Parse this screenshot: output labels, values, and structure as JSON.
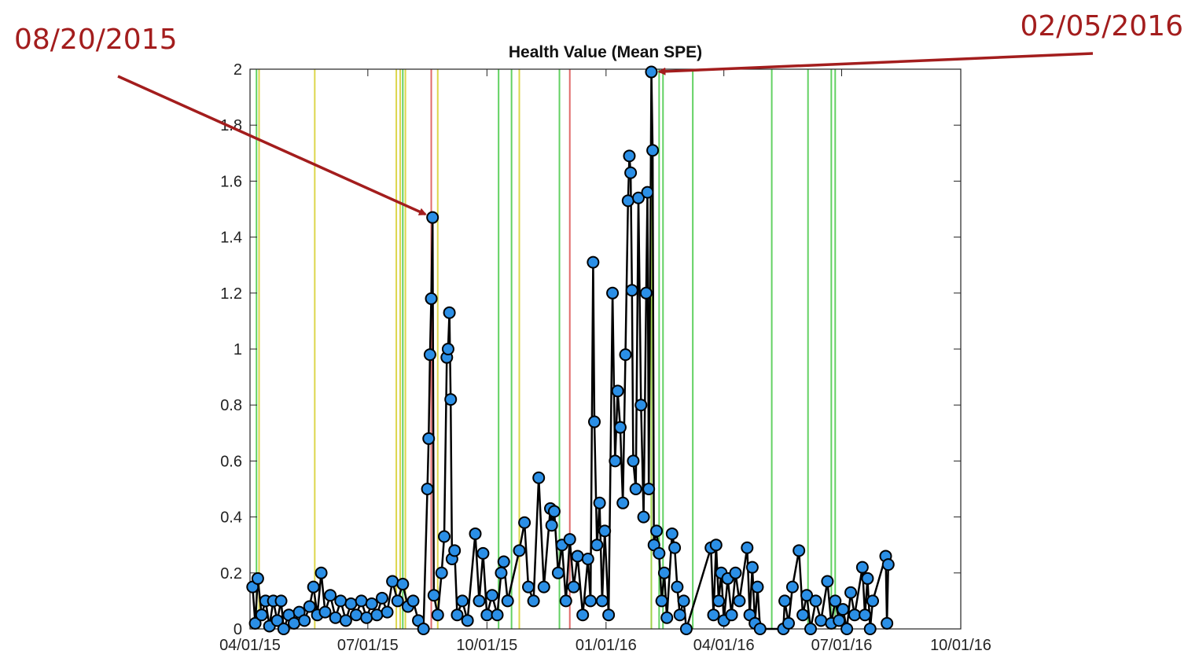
{
  "chart_data": {
    "type": "line",
    "title": "Health Value (Mean SPE)",
    "xlim": [
      "2015-04-01",
      "2016-10-01"
    ],
    "xticks": [
      {
        "value": "2015-04-01",
        "label": "04/01/15"
      },
      {
        "value": "2015-07-01",
        "label": "07/01/15"
      },
      {
        "value": "2015-10-01",
        "label": "10/01/15"
      },
      {
        "value": "2016-01-01",
        "label": "01/01/16"
      },
      {
        "value": "2016-04-01",
        "label": "04/01/16"
      },
      {
        "value": "2016-07-01",
        "label": "07/01/16"
      },
      {
        "value": "2016-10-01",
        "label": "10/01/16"
      }
    ],
    "ylim": [
      0,
      2
    ],
    "yticks": [
      0,
      0.2,
      0.4,
      0.6,
      0.8,
      1,
      1.2,
      1.4,
      1.6,
      1.8,
      2
    ],
    "grid": false,
    "line_color": "#000000",
    "marker_color": "#2b8fe6",
    "x": [
      "2015-04-03",
      "2015-04-05",
      "2015-04-07",
      "2015-04-10",
      "2015-04-13",
      "2015-04-16",
      "2015-04-19",
      "2015-04-22",
      "2015-04-25",
      "2015-04-27",
      "2015-05-01",
      "2015-05-05",
      "2015-05-09",
      "2015-05-13",
      "2015-05-17",
      "2015-05-20",
      "2015-05-23",
      "2015-05-26",
      "2015-05-29",
      "2015-06-02",
      "2015-06-06",
      "2015-06-10",
      "2015-06-14",
      "2015-06-18",
      "2015-06-22",
      "2015-06-26",
      "2015-06-30",
      "2015-07-04",
      "2015-07-08",
      "2015-07-12",
      "2015-07-16",
      "2015-07-20",
      "2015-07-24",
      "2015-07-28",
      "2015-08-01",
      "2015-08-05",
      "2015-08-09",
      "2015-08-13",
      "2015-08-16",
      "2015-08-17",
      "2015-08-18",
      "2015-08-19",
      "2015-08-20",
      "2015-08-21",
      "2015-08-24",
      "2015-08-27",
      "2015-08-29",
      "2015-08-31",
      "2015-09-01",
      "2015-09-02",
      "2015-09-03",
      "2015-09-04",
      "2015-09-06",
      "2015-09-08",
      "2015-09-12",
      "2015-09-16",
      "2015-09-22",
      "2015-09-25",
      "2015-09-28",
      "2015-10-01",
      "2015-10-05",
      "2015-10-09",
      "2015-10-12",
      "2015-10-14",
      "2015-10-17",
      "2015-10-26",
      "2015-10-30",
      "2015-11-02",
      "2015-11-06",
      "2015-11-10",
      "2015-11-14",
      "2015-11-19",
      "2015-11-20",
      "2015-11-22",
      "2015-11-25",
      "2015-11-28",
      "2015-12-01",
      "2015-12-04",
      "2015-12-07",
      "2015-12-10",
      "2015-12-14",
      "2015-12-18",
      "2015-12-20",
      "2015-12-22",
      "2015-12-23",
      "2015-12-25",
      "2015-12-27",
      "2015-12-29",
      "2015-12-31",
      "2016-01-03",
      "2016-01-06",
      "2016-01-08",
      "2016-01-10",
      "2016-01-12",
      "2016-01-14",
      "2016-01-16",
      "2016-01-18",
      "2016-01-19",
      "2016-01-20",
      "2016-01-21",
      "2016-01-22",
      "2016-01-24",
      "2016-01-26",
      "2016-01-28",
      "2016-01-30",
      "2016-02-01",
      "2016-02-02",
      "2016-02-03",
      "2016-02-05",
      "2016-02-06",
      "2016-02-07",
      "2016-02-09",
      "2016-02-11",
      "2016-02-13",
      "2016-02-15",
      "2016-02-17",
      "2016-02-21",
      "2016-02-23",
      "2016-02-25",
      "2016-02-27",
      "2016-03-01",
      "2016-03-03",
      "2016-03-22",
      "2016-03-24",
      "2016-03-26",
      "2016-03-28",
      "2016-03-30",
      "2016-04-01",
      "2016-04-04",
      "2016-04-07",
      "2016-04-10",
      "2016-04-13",
      "2016-04-19",
      "2016-04-21",
      "2016-04-23",
      "2016-04-25",
      "2016-04-27",
      "2016-04-29",
      "2016-05-17",
      "2016-05-18",
      "2016-05-21",
      "2016-05-24",
      "2016-05-29",
      "2016-06-01",
      "2016-06-04",
      "2016-06-07",
      "2016-06-11",
      "2016-06-15",
      "2016-06-20",
      "2016-06-23",
      "2016-06-26",
      "2016-06-29",
      "2016-07-02",
      "2016-07-05",
      "2016-07-08",
      "2016-07-11",
      "2016-07-17",
      "2016-07-19",
      "2016-07-21",
      "2016-07-23",
      "2016-07-25",
      "2016-08-04",
      "2016-08-05",
      "2016-08-06"
    ],
    "series": [
      {
        "name": "Mean SPE",
        "values": [
          0.15,
          0.02,
          0.18,
          0.05,
          0.1,
          0.01,
          0.1,
          0.03,
          0.1,
          0.0,
          0.05,
          0.02,
          0.06,
          0.03,
          0.08,
          0.15,
          0.05,
          0.2,
          0.06,
          0.12,
          0.04,
          0.1,
          0.03,
          0.09,
          0.05,
          0.1,
          0.04,
          0.09,
          0.05,
          0.11,
          0.06,
          0.17,
          0.1,
          0.16,
          0.08,
          0.1,
          0.03,
          0.0,
          0.5,
          0.68,
          0.98,
          1.18,
          1.47,
          0.12,
          0.05,
          0.2,
          0.33,
          0.97,
          1.0,
          1.13,
          0.82,
          0.25,
          0.28,
          0.05,
          0.1,
          0.03,
          0.34,
          0.1,
          0.27,
          0.05,
          0.12,
          0.05,
          0.2,
          0.24,
          0.1,
          0.28,
          0.38,
          0.15,
          0.1,
          0.54,
          0.15,
          0.43,
          0.37,
          0.42,
          0.2,
          0.3,
          0.1,
          0.32,
          0.15,
          0.26,
          0.05,
          0.25,
          0.1,
          1.31,
          0.74,
          0.3,
          0.45,
          0.1,
          0.35,
          0.05,
          1.2,
          0.6,
          0.85,
          0.72,
          0.45,
          0.98,
          1.53,
          1.69,
          1.63,
          1.21,
          0.6,
          0.5,
          1.54,
          0.8,
          0.4,
          1.2,
          1.56,
          0.5,
          1.99,
          1.71,
          0.3,
          0.35,
          0.27,
          0.1,
          0.2,
          0.04,
          0.34,
          0.29,
          0.15,
          0.05,
          0.1,
          0.0,
          0.29,
          0.05,
          0.3,
          0.1,
          0.2,
          0.03,
          0.18,
          0.05,
          0.2,
          0.1,
          0.29,
          0.05,
          0.22,
          0.02,
          0.15,
          0.0,
          0.0,
          0.1,
          0.02,
          0.15,
          0.28,
          0.05,
          0.12,
          0.0,
          0.1,
          0.03,
          0.17,
          0.02,
          0.1,
          0.03,
          0.07,
          0.0,
          0.13,
          0.05,
          0.22,
          0.05,
          0.18,
          0.0,
          0.1,
          0.26,
          0.02,
          0.23
        ]
      }
    ],
    "vlines": [
      {
        "x": "2015-04-06",
        "color": "#62d162"
      },
      {
        "x": "2015-04-08",
        "color": "#dcd64c"
      },
      {
        "x": "2015-05-21",
        "color": "#dcd64c"
      },
      {
        "x": "2015-07-23",
        "color": "#dcd64c"
      },
      {
        "x": "2015-07-26",
        "color": "#dcd64c"
      },
      {
        "x": "2015-07-28",
        "color": "#62d162"
      },
      {
        "x": "2015-07-30",
        "color": "#dcd64c"
      },
      {
        "x": "2015-08-19",
        "color": "#e06a6a"
      },
      {
        "x": "2015-08-24",
        "color": "#dcd64c"
      },
      {
        "x": "2015-10-10",
        "color": "#62d162"
      },
      {
        "x": "2015-10-20",
        "color": "#62d162"
      },
      {
        "x": "2015-10-26",
        "color": "#dcd64c"
      },
      {
        "x": "2015-11-26",
        "color": "#62d162"
      },
      {
        "x": "2015-12-04",
        "color": "#e06a6a"
      },
      {
        "x": "2016-02-05",
        "color": "#9fd34a"
      },
      {
        "x": "2016-02-11",
        "color": "#62d162"
      },
      {
        "x": "2016-02-14",
        "color": "#62d162"
      },
      {
        "x": "2016-03-08",
        "color": "#62d162"
      },
      {
        "x": "2016-05-08",
        "color": "#62d162"
      },
      {
        "x": "2016-06-05",
        "color": "#62d162"
      },
      {
        "x": "2016-06-23",
        "color": "#62d162"
      },
      {
        "x": "2016-06-26",
        "color": "#62d162"
      }
    ],
    "annotations": [
      {
        "text": "08/20/2015",
        "x": "2015-08-20",
        "y": 1.47,
        "color": "#a31d1d"
      },
      {
        "text": "02/05/2016",
        "x": "2016-02-05",
        "y": 1.99,
        "color": "#a31d1d"
      }
    ]
  }
}
